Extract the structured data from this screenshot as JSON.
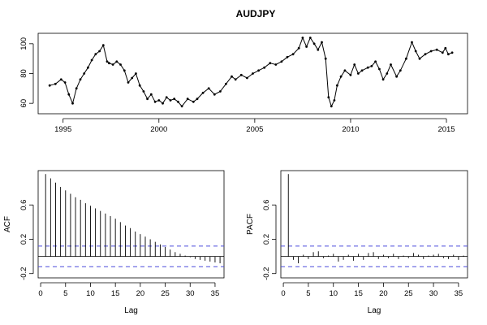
{
  "chart_data": [
    {
      "type": "line",
      "title": "AUDJPY",
      "xlabel": "",
      "ylabel": "",
      "x_unit": "year",
      "xlim": [
        1993.7,
        2016.1
      ],
      "ylim": [
        53,
        107
      ],
      "x_ticks": [
        1995,
        2000,
        2005,
        2010,
        2015
      ],
      "y_ticks": [
        60,
        80,
        100
      ],
      "markers": true,
      "series": [
        {
          "x": [
            1994.3,
            1994.6,
            1994.9,
            1995.1,
            1995.3,
            1995.5,
            1995.7,
            1995.9,
            1996.1,
            1996.3,
            1996.5,
            1996.7,
            1996.9,
            1997.1,
            1997.3,
            1997.4,
            1997.6,
            1997.8,
            1998.0,
            1998.2,
            1998.4,
            1998.6,
            1998.8,
            1999.0,
            1999.2,
            1999.4,
            1999.6,
            1999.8,
            2000.0,
            2000.2,
            2000.4,
            2000.6,
            2000.8,
            2001.0,
            2001.2,
            2001.5,
            2001.8,
            2002.0,
            2002.3,
            2002.6,
            2002.9,
            2003.2,
            2003.5,
            2003.8,
            2004.0,
            2004.3,
            2004.6,
            2004.9,
            2005.2,
            2005.5,
            2005.8,
            2006.1,
            2006.4,
            2006.7,
            2007.0,
            2007.3,
            2007.5,
            2007.7,
            2007.9,
            2008.1,
            2008.3,
            2008.5,
            2008.7,
            2008.85,
            2009.0,
            2009.15,
            2009.3,
            2009.5,
            2009.7,
            2010.0,
            2010.2,
            2010.4,
            2010.6,
            2010.9,
            2011.1,
            2011.3,
            2011.5,
            2011.7,
            2011.9,
            2012.1,
            2012.4,
            2012.6,
            2012.9,
            2013.2,
            2013.4,
            2013.6,
            2013.9,
            2014.2,
            2014.5,
            2014.8,
            2014.95,
            2015.1,
            2015.3
          ],
          "values": [
            72,
            73,
            76,
            74,
            66,
            60,
            70,
            76,
            80,
            84,
            89,
            93,
            95,
            99,
            88,
            87,
            86,
            88,
            86,
            82,
            74,
            77,
            80,
            72,
            68,
            63,
            66,
            61,
            62,
            60,
            64,
            62,
            63,
            61,
            58,
            63,
            61,
            63,
            67,
            70,
            66,
            68,
            73,
            78,
            76,
            79,
            77,
            80,
            82,
            84,
            87,
            86,
            88,
            91,
            93,
            97,
            104,
            98,
            104,
            100,
            96,
            101,
            90,
            64,
            58,
            62,
            72,
            78,
            82,
            79,
            86,
            80,
            82,
            84,
            85,
            88,
            83,
            76,
            80,
            86,
            78,
            82,
            90,
            101,
            95,
            90,
            93,
            95,
            96,
            94,
            97,
            93,
            94
          ]
        }
      ]
    },
    {
      "type": "bar",
      "xlabel": "Lag",
      "ylabel": "ACF",
      "xlim": [
        -0.5,
        36.8
      ],
      "ylim": [
        -0.25,
        1.0
      ],
      "x_ticks": [
        0,
        5,
        10,
        15,
        20,
        25,
        30,
        35
      ],
      "y_ticks": [
        -0.2,
        0.2,
        0.6
      ],
      "confidence_band": [
        0.12,
        -0.12
      ],
      "lags": [
        1,
        2,
        3,
        4,
        5,
        6,
        7,
        8,
        9,
        10,
        11,
        12,
        13,
        14,
        15,
        16,
        17,
        18,
        19,
        20,
        21,
        22,
        23,
        24,
        25,
        26,
        27,
        28,
        29,
        30,
        31,
        32,
        33,
        34,
        35,
        36
      ],
      "values": [
        0.96,
        0.91,
        0.86,
        0.81,
        0.77,
        0.73,
        0.69,
        0.66,
        0.62,
        0.59,
        0.56,
        0.53,
        0.5,
        0.47,
        0.44,
        0.4,
        0.36,
        0.33,
        0.29,
        0.26,
        0.23,
        0.2,
        0.17,
        0.14,
        0.11,
        0.08,
        0.05,
        0.03,
        0.01,
        -0.01,
        -0.03,
        -0.04,
        -0.05,
        -0.06,
        -0.07,
        -0.08
      ]
    },
    {
      "type": "bar",
      "xlabel": "Lag",
      "ylabel": "PACF",
      "xlim": [
        -0.5,
        36.8
      ],
      "ylim": [
        -0.25,
        1.0
      ],
      "x_ticks": [
        0,
        5,
        10,
        15,
        20,
        25,
        30,
        35
      ],
      "y_ticks": [
        -0.2,
        0.2,
        0.6
      ],
      "confidence_band": [
        0.12,
        -0.12
      ],
      "lags": [
        1,
        2,
        3,
        4,
        5,
        6,
        7,
        8,
        9,
        10,
        11,
        12,
        13,
        14,
        15,
        16,
        17,
        18,
        19,
        20,
        21,
        22,
        23,
        24,
        25,
        26,
        27,
        28,
        29,
        30,
        31,
        32,
        33,
        34,
        35,
        36
      ],
      "values": [
        0.96,
        -0.04,
        -0.08,
        0.02,
        -0.03,
        0.05,
        0.06,
        -0.02,
        0.01,
        0.03,
        -0.06,
        -0.04,
        0.02,
        -0.05,
        0.03,
        -0.04,
        0.04,
        0.05,
        -0.03,
        0.02,
        -0.02,
        0.03,
        -0.03,
        0.01,
        -0.02,
        0.04,
        0.02,
        -0.03,
        0.01,
        0.02,
        0.03,
        -0.02,
        -0.03,
        0.02,
        -0.04,
        0.01
      ]
    }
  ],
  "style": {
    "line_color": "#000000",
    "band_color": "#4b4bdc",
    "background": "#ffffff"
  }
}
